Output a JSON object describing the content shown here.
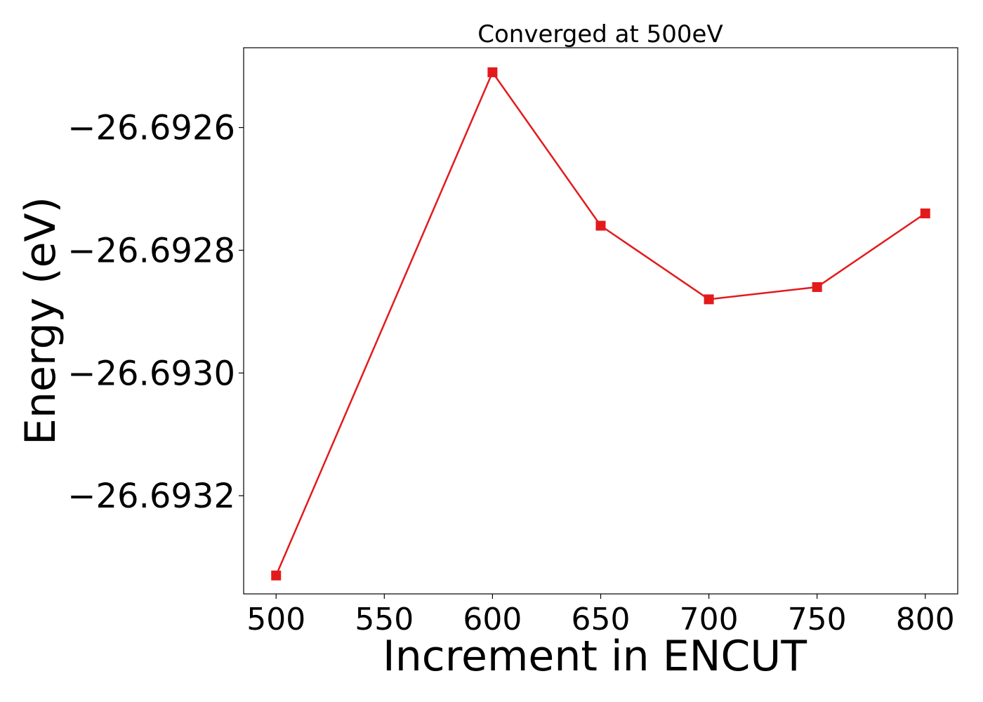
{
  "chart_data": {
    "type": "line",
    "title": "Converged at 500eV",
    "xlabel": "Increment in ENCUT",
    "ylabel": "Energy (eV)",
    "x": [
      500,
      600,
      650,
      700,
      750,
      800
    ],
    "series": [
      {
        "values": [
          -26.69333,
          -26.69251,
          -26.69276,
          -26.69288,
          -26.69286,
          -26.69274
        ],
        "color": "#e31a1c",
        "marker": "square"
      }
    ],
    "xlim": [
      485,
      815
    ],
    "ylim": [
      -26.69336,
      -26.69247
    ],
    "xticks": [
      500,
      550,
      600,
      650,
      700,
      750,
      800
    ],
    "xtick_labels": [
      "500",
      "550",
      "600",
      "650",
      "700",
      "750",
      "800"
    ],
    "yticks": [
      -26.6926,
      -26.6928,
      -26.693,
      -26.6932
    ],
    "ytick_labels": [
      "−26.6926",
      "−26.6928",
      "−26.6930",
      "−26.6932"
    ],
    "grid": false,
    "legend": "none"
  }
}
